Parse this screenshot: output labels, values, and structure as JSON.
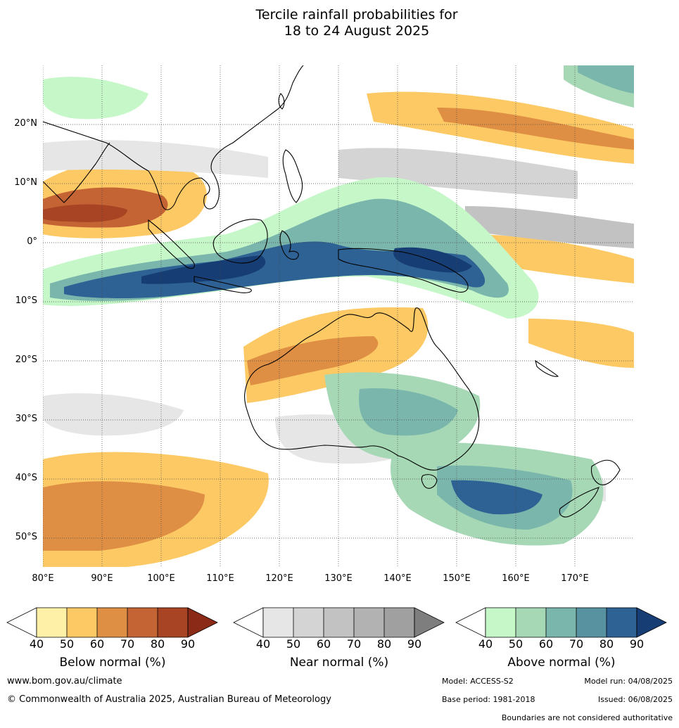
{
  "title_line1": "Tercile rainfall probabilities for",
  "title_line2": "18 to 24 August 2025",
  "map": {
    "lat_ticks": [
      "20°N",
      "10°N",
      "0°",
      "10°S",
      "20°S",
      "30°S",
      "40°S",
      "50°S"
    ],
    "lon_ticks": [
      "80°E",
      "90°E",
      "100°E",
      "110°E",
      "120°E",
      "130°E",
      "140°E",
      "150°E",
      "160°E",
      "170°E"
    ],
    "lat_range": [
      -55,
      30
    ],
    "lon_range": [
      80,
      180
    ]
  },
  "legend": {
    "below": {
      "label": "Below normal (%)",
      "ticks": [
        "40",
        "50",
        "60",
        "70",
        "80",
        "90"
      ],
      "colors": [
        "#ffffff",
        "#fff0a8",
        "#fdc965",
        "#df8f43",
        "#c46434",
        "#a84424",
        "#8c2a18"
      ]
    },
    "near": {
      "label": "Near normal (%)",
      "ticks": [
        "40",
        "50",
        "60",
        "70",
        "80",
        "90"
      ],
      "colors": [
        "#ffffff",
        "#e6e6e6",
        "#d4d4d4",
        "#c2c2c2",
        "#b2b2b2",
        "#a0a0a0",
        "#7e7e7e"
      ]
    },
    "above": {
      "label": "Above normal (%)",
      "ticks": [
        "40",
        "50",
        "60",
        "70",
        "80",
        "90"
      ],
      "colors": [
        "#ffffff",
        "#c6f7c8",
        "#a6d8b6",
        "#7ab6ac",
        "#5892a0",
        "#2f6294",
        "#173e74"
      ]
    }
  },
  "footer": {
    "website": "www.bom.gov.au/climate",
    "copyright": "© Commonwealth of Australia 2025, Australian Bureau of Meteorology",
    "model": "Model: ACCESS-S2",
    "model_run": "Model run: 04/08/2025",
    "base_period": "Base period: 1981-2018",
    "issued": "Issued: 06/08/2025",
    "disclaimer": "Boundaries are not considered authoritative"
  }
}
